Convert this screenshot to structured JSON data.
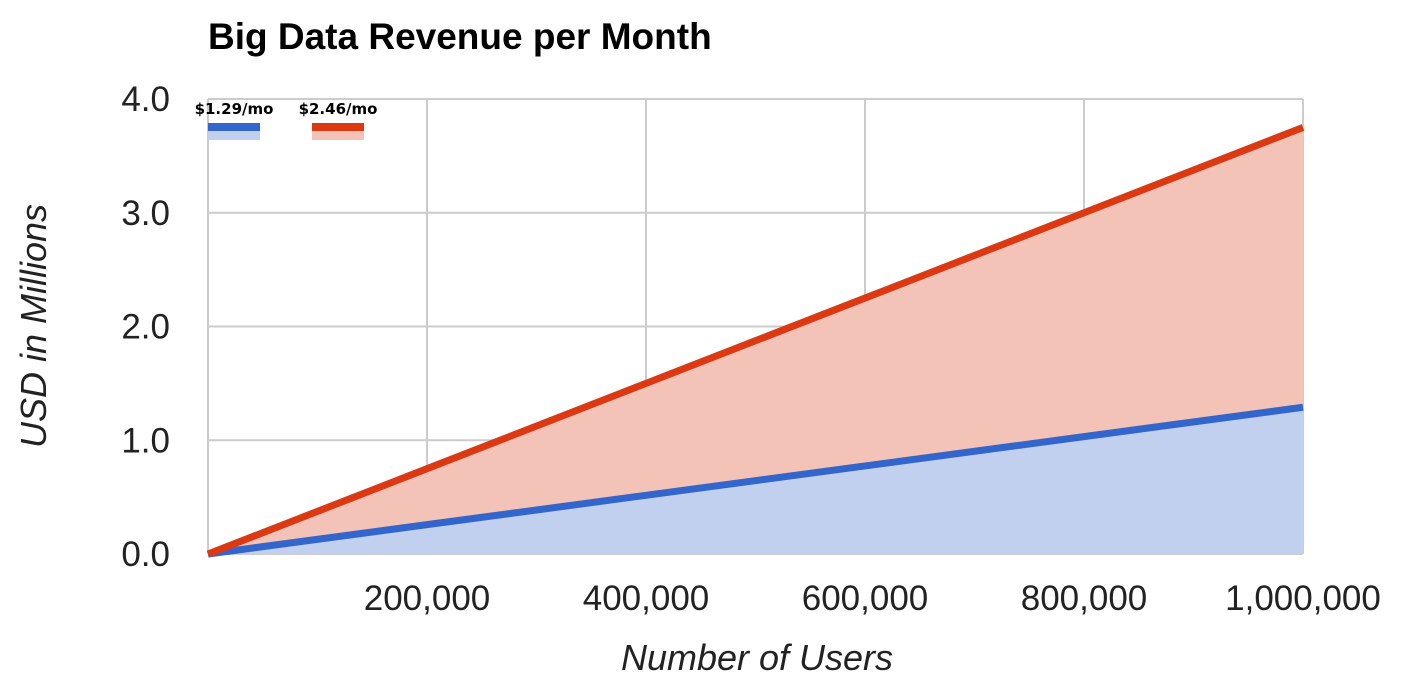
{
  "chart_data": {
    "type": "area",
    "title": "Big Data Revenue per Month",
    "xlabel": "Number of Users",
    "ylabel": "USD in Millions",
    "xlim": [
      0,
      1000000
    ],
    "ylim": [
      0,
      4
    ],
    "x_ticks": [
      200000,
      400000,
      600000,
      800000,
      1000000
    ],
    "x_tick_labels": [
      "200,000",
      "400,000",
      "600,000",
      "800,000",
      "1,000,000"
    ],
    "y_ticks": [
      0,
      1,
      2,
      3,
      4
    ],
    "y_tick_labels": [
      "0.0",
      "1.0",
      "2.0",
      "3.0",
      "4.0"
    ],
    "grid": true,
    "legend_position": "top-left",
    "x": [
      0,
      200000,
      400000,
      600000,
      800000,
      1000000
    ],
    "series": [
      {
        "name": "$1.29/mo",
        "color": "#3366cc",
        "fill": "#c0d0ee",
        "values": [
          0,
          0.258,
          0.516,
          0.774,
          1.032,
          1.29
        ]
      },
      {
        "name": "$2.46/mo",
        "color": "#dc3912",
        "fill": "#f3c3b8",
        "values": [
          0,
          0.75,
          1.5,
          2.25,
          3.0,
          3.75
        ]
      }
    ]
  }
}
